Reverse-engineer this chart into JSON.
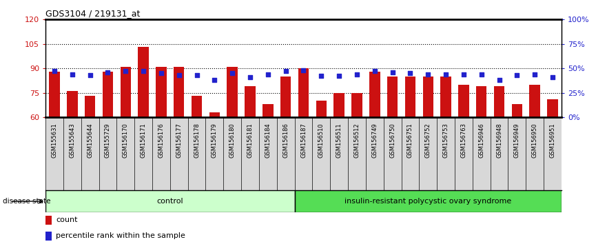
{
  "title": "GDS3104 / 219131_at",
  "samples": [
    "GSM155631",
    "GSM155643",
    "GSM155644",
    "GSM155729",
    "GSM156170",
    "GSM156171",
    "GSM156176",
    "GSM156177",
    "GSM156178",
    "GSM156179",
    "GSM156180",
    "GSM156181",
    "GSM156184",
    "GSM156186",
    "GSM156187",
    "GSM156510",
    "GSM156511",
    "GSM156512",
    "GSM156749",
    "GSM156750",
    "GSM156751",
    "GSM156752",
    "GSM156753",
    "GSM156763",
    "GSM156946",
    "GSM156948",
    "GSM156949",
    "GSM156950",
    "GSM156951"
  ],
  "bar_values": [
    88,
    76,
    73,
    88,
    91,
    103,
    91,
    91,
    73,
    63,
    91,
    79,
    68,
    85,
    90,
    70,
    75,
    75,
    88,
    85,
    85,
    85,
    85,
    80,
    79,
    79,
    68,
    80,
    71
  ],
  "blue_percentile": [
    47,
    44,
    43,
    46,
    47,
    47,
    45,
    43,
    43,
    38,
    45,
    41,
    44,
    47,
    48,
    42,
    42,
    44,
    47,
    46,
    45,
    44,
    44,
    44,
    44,
    38,
    43,
    44,
    41
  ],
  "control_count": 14,
  "ylim_left": [
    60,
    120
  ],
  "ylim_right": [
    0,
    100
  ],
  "yticks_left": [
    60,
    75,
    90,
    105,
    120
  ],
  "yticks_right": [
    0,
    25,
    50,
    75,
    100
  ],
  "ytick_labels_right": [
    "0%",
    "25%",
    "50%",
    "75%",
    "100%"
  ],
  "bar_color": "#cc1111",
  "blue_color": "#2222cc",
  "control_label": "control",
  "disease_label": "insulin-resistant polycystic ovary syndrome",
  "control_bg": "#ccffcc",
  "disease_bg": "#55dd55",
  "disease_state_label": "disease state",
  "legend_count": "count",
  "legend_percentile": "percentile rank within the sample",
  "tick_color_left": "#cc1111",
  "tick_color_right": "#2222cc",
  "xticklabel_bg": "#d8d8d8"
}
